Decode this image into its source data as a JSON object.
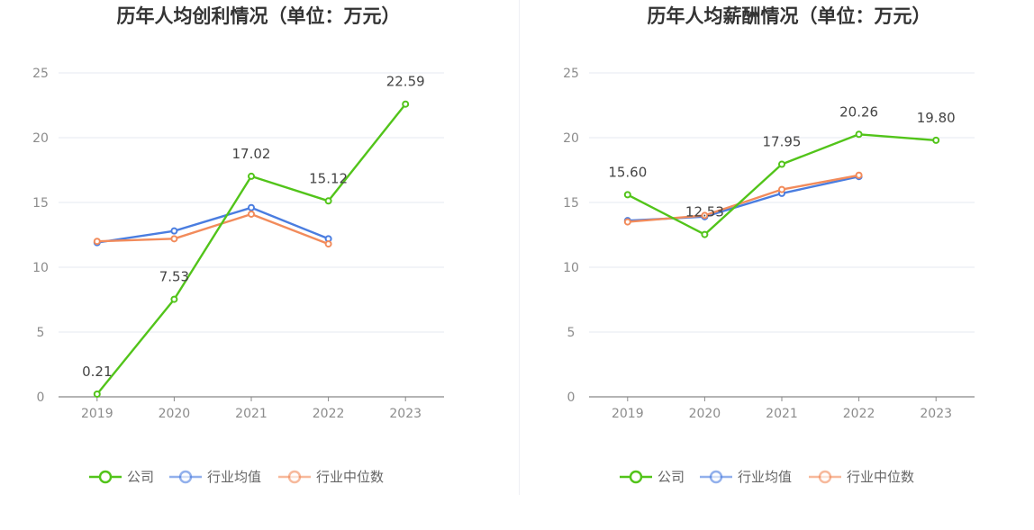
{
  "chart_data": [
    {
      "type": "line",
      "title": "历年人均创利情况（单位：万元）",
      "categories": [
        "2019",
        "2020",
        "2021",
        "2022",
        "2023"
      ],
      "ylim": [
        0,
        25
      ],
      "yticks": [
        0,
        5,
        10,
        15,
        20,
        25
      ],
      "grid": true,
      "legend_position": "bottom-center",
      "series": [
        {
          "name": "公司",
          "color": "#52c41a",
          "values": [
            0.21,
            7.53,
            17.02,
            15.12,
            22.59
          ],
          "labels": [
            "0.21",
            "7.53",
            "17.02",
            "15.12",
            "22.59"
          ]
        },
        {
          "name": "行业均值",
          "color": "#4a7de0",
          "values": [
            11.9,
            12.8,
            14.6,
            12.2,
            null
          ]
        },
        {
          "name": "行业中位数",
          "color": "#f28b5b",
          "values": [
            12.0,
            12.2,
            14.1,
            11.8,
            null
          ]
        }
      ]
    },
    {
      "type": "line",
      "title": "历年人均薪酬情况（单位：万元）",
      "categories": [
        "2019",
        "2020",
        "2021",
        "2022",
        "2023"
      ],
      "ylim": [
        0,
        25
      ],
      "yticks": [
        0,
        5,
        10,
        15,
        20,
        25
      ],
      "grid": true,
      "legend_position": "bottom-center",
      "series": [
        {
          "name": "公司",
          "color": "#52c41a",
          "values": [
            15.6,
            12.53,
            17.95,
            20.26,
            19.8
          ],
          "labels": [
            "15.60",
            "12.53",
            "17.95",
            "20.26",
            "19.80"
          ]
        },
        {
          "name": "行业均值",
          "color": "#4a7de0",
          "values": [
            13.6,
            13.9,
            15.7,
            17.0,
            null
          ]
        },
        {
          "name": "行业中位数",
          "color": "#f28b5b",
          "values": [
            13.5,
            14.0,
            16.0,
            17.1,
            null
          ]
        }
      ]
    }
  ]
}
